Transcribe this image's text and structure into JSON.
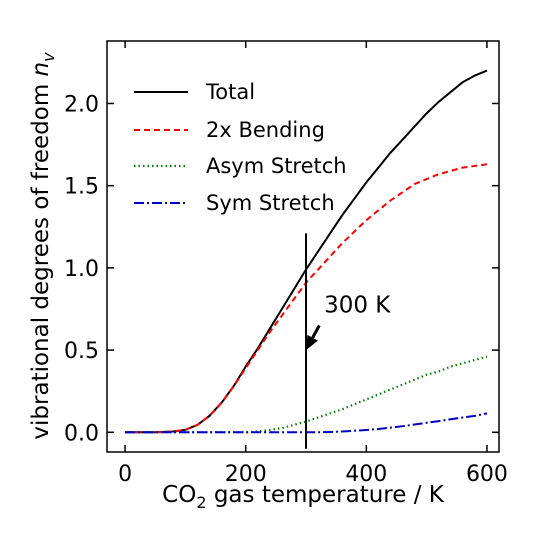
{
  "chart_data": {
    "type": "line",
    "xlabel_main": "CO",
    "xlabel_sub": "2",
    "xlabel_rest": " gas temperature / K",
    "ylabel_main": "vibrational degrees of freedom ",
    "ylabel_var": "n",
    "ylabel_sub": "v",
    "xlim": [
      -30,
      620
    ],
    "ylim": [
      -0.12,
      2.38
    ],
    "xticks": [
      0,
      200,
      400,
      600
    ],
    "xtick_labels": [
      "0",
      "200",
      "400",
      "600"
    ],
    "yticks": [
      0.0,
      0.5,
      1.0,
      1.5,
      2.0
    ],
    "ytick_labels": [
      "0.0",
      "0.5",
      "1.0",
      "1.5",
      "2.0"
    ],
    "legend_position": "top-left",
    "grid": false,
    "x": [
      0,
      50,
      80,
      100,
      120,
      140,
      160,
      180,
      200,
      220,
      240,
      260,
      280,
      300,
      320,
      340,
      360,
      380,
      400,
      420,
      440,
      460,
      480,
      500,
      520,
      540,
      560,
      580,
      600
    ],
    "series": [
      {
        "name": "Total",
        "color": "#000000",
        "dash": "",
        "values": [
          0,
          0,
          0.005,
          0.015,
          0.045,
          0.1,
          0.18,
          0.28,
          0.4,
          0.51,
          0.63,
          0.75,
          0.87,
          0.99,
          1.1,
          1.21,
          1.32,
          1.42,
          1.52,
          1.61,
          1.7,
          1.78,
          1.86,
          1.94,
          2.01,
          2.07,
          2.13,
          2.17,
          2.2
        ]
      },
      {
        "name": "2x Bending",
        "color": "#ff0000",
        "dash": "6,4",
        "values": [
          0,
          0,
          0.005,
          0.015,
          0.045,
          0.1,
          0.18,
          0.28,
          0.39,
          0.5,
          0.61,
          0.71,
          0.81,
          0.91,
          0.99,
          1.07,
          1.15,
          1.22,
          1.29,
          1.35,
          1.41,
          1.46,
          1.51,
          1.54,
          1.57,
          1.59,
          1.61,
          1.62,
          1.63
        ]
      },
      {
        "name": "Asym Stretch",
        "color": "#008000",
        "dash": "1.5,3",
        "values": [
          0,
          0,
          0,
          0,
          0,
          0,
          0,
          0,
          0,
          0.005,
          0.015,
          0.025,
          0.045,
          0.065,
          0.09,
          0.115,
          0.14,
          0.17,
          0.2,
          0.23,
          0.26,
          0.29,
          0.32,
          0.35,
          0.37,
          0.4,
          0.42,
          0.44,
          0.46
        ]
      },
      {
        "name": "Sym Stretch",
        "color": "#0000cc",
        "dash": "10,3,2,3",
        "values": [
          0,
          0,
          0,
          0,
          0,
          0,
          0,
          0,
          0,
          0,
          0,
          0,
          0,
          0,
          0,
          0.002,
          0.005,
          0.009,
          0.014,
          0.02,
          0.028,
          0.037,
          0.047,
          0.058,
          0.068,
          0.079,
          0.09,
          0.1,
          0.115
        ]
      }
    ],
    "vline": {
      "x": 300,
      "y_from": -0.1,
      "y_to": 1.21
    },
    "annotation": {
      "text": "300 K",
      "text_x": 330,
      "text_y": 0.73,
      "arrow_from_x": 322,
      "arrow_from_y": 0.65,
      "arrow_to_x": 300,
      "arrow_to_y": 0.5
    }
  }
}
